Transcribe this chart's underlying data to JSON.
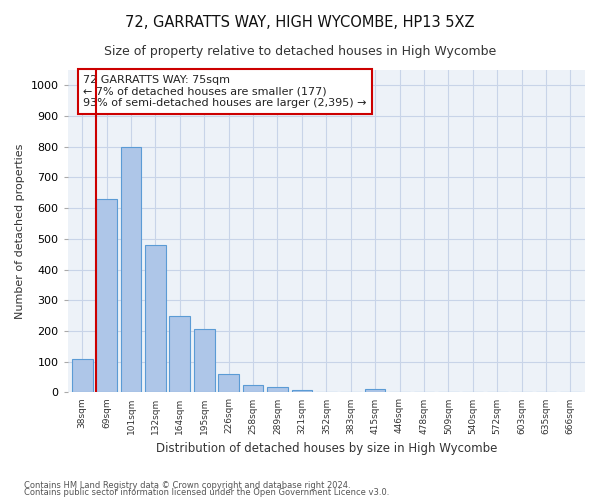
{
  "title": "72, GARRATTS WAY, HIGH WYCOMBE, HP13 5XZ",
  "subtitle": "Size of property relative to detached houses in High Wycombe",
  "xlabel": "Distribution of detached houses by size in High Wycombe",
  "ylabel": "Number of detached properties",
  "bar_labels": [
    "38sqm",
    "69sqm",
    "101sqm",
    "132sqm",
    "164sqm",
    "195sqm",
    "226sqm",
    "258sqm",
    "289sqm",
    "321sqm",
    "352sqm",
    "383sqm",
    "415sqm",
    "446sqm",
    "478sqm",
    "509sqm",
    "540sqm",
    "572sqm",
    "603sqm",
    "635sqm",
    "666sqm"
  ],
  "bar_values": [
    110,
    630,
    800,
    480,
    250,
    205,
    60,
    25,
    18,
    8,
    0,
    0,
    10,
    0,
    0,
    0,
    0,
    0,
    0,
    0,
    0
  ],
  "bar_color": "#aec6e8",
  "bar_edge_color": "#5b9bd5",
  "marker_label_line1": "72 GARRATTS WAY: 75sqm",
  "marker_label_line2": "← 7% of detached houses are smaller (177)",
  "marker_label_line3": "93% of semi-detached houses are larger (2,395) →",
  "annotation_box_color": "#ffffff",
  "annotation_box_edge": "#cc0000",
  "marker_line_color": "#cc0000",
  "ylim": [
    0,
    1050
  ],
  "footnote1": "Contains HM Land Registry data © Crown copyright and database right 2024.",
  "footnote2": "Contains public sector information licensed under the Open Government Licence v3.0.",
  "grid_color": "#c8d4e8",
  "background_color": "#edf2f8"
}
